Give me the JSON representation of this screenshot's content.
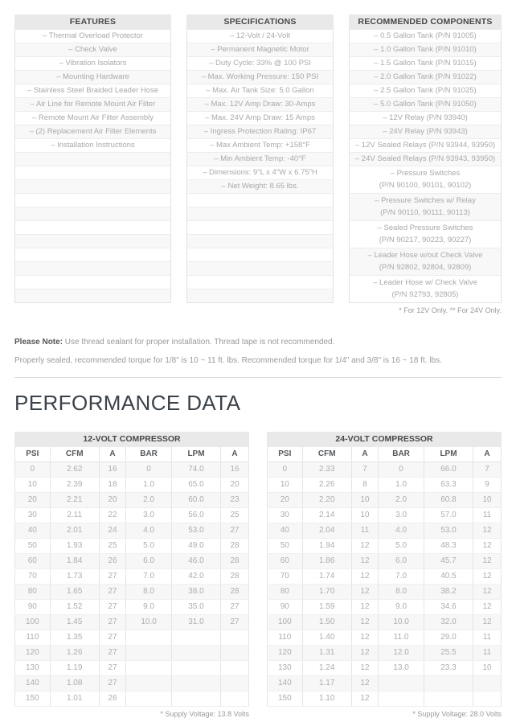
{
  "info_columns": [
    {
      "title": "FEATURES",
      "items": [
        "– Thermal Overload Protector",
        "– Check Valve",
        "– Vibration Isolators",
        "– Mounting Hardware",
        "– Stainless Steel Braided Leader Hose",
        "– Air Line for Remote Mount Air Filter",
        "– Remote Mount Air Filter Assembly",
        "– (2) Replacement Air Filter Elements",
        "– Installation Instructions"
      ],
      "empty_rows": 11
    },
    {
      "title": "SPECIFICATIONS",
      "items": [
        "– 12-Volt / 24-Volt",
        "– Permanent Magnetic Motor",
        "– Duty Cycle: 33% @ 100 PSI",
        "– Max. Working Pressure: 150 PSI",
        "– Max. Air Tank Size: 5.0 Gallon",
        "– Max. 12V Amp Draw: 30-Amps",
        "– Max. 24V Amp Draw: 15 Amps",
        "– Ingress Protection Rating: IP67",
        "– Max Ambient Temp: +158°F",
        "– Min Ambient Temp: -40°F",
        "– Dimensions: 9\"L x 4\"W x 6.75\"H",
        "– Net Weight: 8.65 lbs."
      ],
      "empty_rows": 8
    },
    {
      "title": "RECOMMENDED COMPONENTS",
      "items": [
        {
          "text": "– 0.5 Gallon Tank (P/N 91005)"
        },
        {
          "text": "– 1.0 Gallon Tank (P/N 91010)"
        },
        {
          "text": "– 1.5 Gallon Tank (P/N 91015)"
        },
        {
          "text": "– 2.0 Gallon Tank (P/N 91022)"
        },
        {
          "text": "– 2.5 Gallon Tank (P/N 91025)"
        },
        {
          "text": "– 5.0 Gallon Tank (P/N 91050)"
        },
        {
          "text": "– 12V Relay (P/N 93940)"
        },
        {
          "text": "– 24V Relay (P/N 93943)"
        },
        {
          "text": "– 12V Sealed Relays (P/N 93944, 93950)"
        },
        {
          "text": "– 24V Sealed Relays (P/N 93943, 93950)"
        },
        {
          "text": "– Pressure Switches",
          "pn": "(P/N 90100, 90101, 90102)"
        },
        {
          "text": "– Pressure Switches w/ Relay",
          "pn": "(P/N 90110, 90111, 90113)"
        },
        {
          "text": "– Sealed Pressure Switches",
          "pn": "(P/N 90217, 90223, 90227)"
        },
        {
          "text": "– Leader Hose w/out Check Valve",
          "pn": "(P/N 92802, 92804, 92809)"
        },
        {
          "text": "– Leader Hose w/ Check Valve",
          "pn": "(P/N 92793, 92805)"
        }
      ],
      "empty_rows": 0,
      "footnote": "* For 12V Only. ** For 24V Only."
    }
  ],
  "notes": {
    "label": "Please Note:",
    "line1": " Use thread sealant for proper installation. Thread tape is not recommended.",
    "line2": "Properly sealed, recommended torque for 1/8\" is 10 ~ 11 ft. lbs. Recommended torque for 1/4\" and 3/8\" is 16 ~ 18 ft. lbs."
  },
  "performance": {
    "heading": "PERFORMANCE DATA",
    "tables": [
      {
        "title": "12-VOLT COMPRESSOR",
        "columns": [
          "PSI",
          "CFM",
          "A",
          "BAR",
          "LPM",
          "A"
        ],
        "rows": [
          [
            "0",
            "2.62",
            "16",
            "0",
            "74.0",
            "16"
          ],
          [
            "10",
            "2.39",
            "18",
            "1.0",
            "65.0",
            "20"
          ],
          [
            "20",
            "2.21",
            "20",
            "2.0",
            "60.0",
            "23"
          ],
          [
            "30",
            "2.11",
            "22",
            "3.0",
            "56.0",
            "25"
          ],
          [
            "40",
            "2.01",
            "24",
            "4.0",
            "53.0",
            "27"
          ],
          [
            "50",
            "1.93",
            "25",
            "5.0",
            "49.0",
            "28"
          ],
          [
            "60",
            "1.84",
            "26",
            "6.0",
            "46.0",
            "28"
          ],
          [
            "70",
            "1.73",
            "27",
            "7.0",
            "42.0",
            "28"
          ],
          [
            "80",
            "1.65",
            "27",
            "8.0",
            "38.0",
            "28"
          ],
          [
            "90",
            "1.52",
            "27",
            "9.0",
            "35.0",
            "27"
          ],
          [
            "100",
            "1.45",
            "27",
            "10.0",
            "31.0",
            "27"
          ],
          [
            "110",
            "1.35",
            "27",
            "",
            "",
            ""
          ],
          [
            "120",
            "1.26",
            "27",
            "",
            "",
            ""
          ],
          [
            "130",
            "1.19",
            "27",
            "",
            "",
            ""
          ],
          [
            "140",
            "1.08",
            "27",
            "",
            "",
            ""
          ],
          [
            "150",
            "1.01",
            "26",
            "",
            "",
            ""
          ]
        ],
        "footnote": "* Supply Voltage: 13.8 Volts"
      },
      {
        "title": "24-VOLT COMPRESSOR",
        "columns": [
          "PSI",
          "CFM",
          "A",
          "BAR",
          "LPM",
          "A"
        ],
        "rows": [
          [
            "0",
            "2.33",
            "7",
            "0",
            "66.0",
            "7"
          ],
          [
            "10",
            "2.26",
            "8",
            "1.0",
            "63.3",
            "9"
          ],
          [
            "20",
            "2.20",
            "10",
            "2.0",
            "60.8",
            "10"
          ],
          [
            "30",
            "2.14",
            "10",
            "3.0",
            "57.0",
            "11"
          ],
          [
            "40",
            "2.04",
            "11",
            "4.0",
            "53.0",
            "12"
          ],
          [
            "50",
            "1.94",
            "12",
            "5.0",
            "48.3",
            "12"
          ],
          [
            "60",
            "1.86",
            "12",
            "6.0",
            "45.7",
            "12"
          ],
          [
            "70",
            "1.74",
            "12",
            "7.0",
            "40.5",
            "12"
          ],
          [
            "80",
            "1.70",
            "12",
            "8.0",
            "38.2",
            "12"
          ],
          [
            "90",
            "1.59",
            "12",
            "9.0",
            "34.6",
            "12"
          ],
          [
            "100",
            "1.50",
            "12",
            "10.0",
            "32.0",
            "12"
          ],
          [
            "110",
            "1.40",
            "12",
            "11.0",
            "29.0",
            "11"
          ],
          [
            "120",
            "1.31",
            "12",
            "12.0",
            "25.5",
            "11"
          ],
          [
            "130",
            "1.24",
            "12",
            "13.0",
            "23.3",
            "10"
          ],
          [
            "140",
            "1.17",
            "12",
            "",
            "",
            ""
          ],
          [
            "150",
            "1.10",
            "12",
            "",
            "",
            ""
          ]
        ],
        "footnote": "* Supply Voltage: 28.0 Volts"
      }
    ]
  },
  "colors": {
    "header_bg": "#e9e9e9",
    "header_text": "#474747",
    "row_alt_bg": "#f8f8f8",
    "muted_text": "#a9a9a9",
    "heading_text": "#3b424a",
    "border": "#e2e2e2"
  }
}
